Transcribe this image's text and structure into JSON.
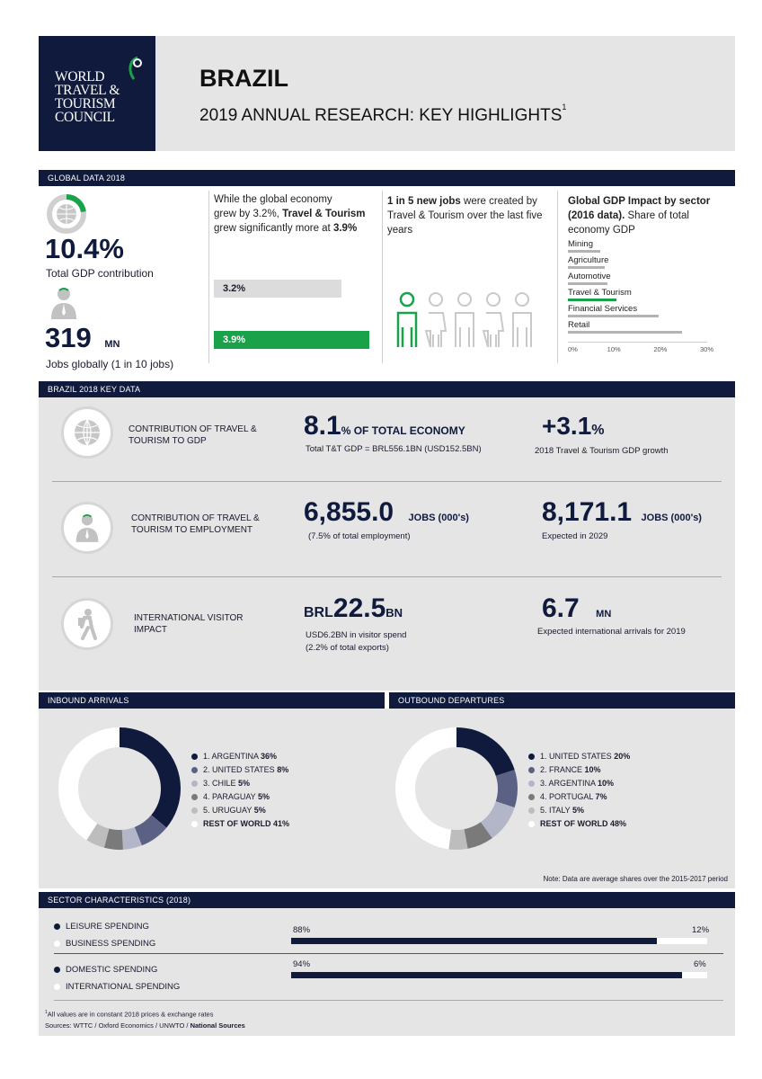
{
  "header": {
    "logo_lines": [
      "WORLD",
      "TRAVEL &",
      "TOURISM",
      "COUNCIL"
    ],
    "country": "BRAZIL",
    "subtitle": "2019 ANNUAL RESEARCH: KEY HIGHLIGHTS",
    "footnote_mark": "1"
  },
  "global": {
    "section_title": "GLOBAL DATA 2018",
    "gdp_value": "10.4%",
    "gdp_label": "Total GDP contribution",
    "gdp_share": 0.104,
    "jobs_value": "319",
    "jobs_unit": "MN",
    "jobs_label": "Jobs globally (1 in 10 jobs)",
    "growth_text_1": "While the global economy",
    "growth_text_2": "grew by 3.2%,",
    "growth_text_2b": "Travel & Tourism",
    "growth_text_3": "grew significantly more at",
    "growth_text_3b": "3.9%",
    "bar_economy": "3.2%",
    "bar_tourism": "3.9%",
    "jobs_text_bold": "1 in 5 new jobs",
    "jobs_text_1": "were created by",
    "jobs_text_2": "Travel & Tourism over the last five",
    "jobs_text_3": "years",
    "sector_title_1": "Global GDP Impact by sector",
    "sector_title_2": "(2016 data).",
    "sector_title_2b": "Share of total",
    "sector_title_3": "economy GDP",
    "sectors": [
      {
        "name": "Mining",
        "value": 7
      },
      {
        "name": "Agriculture",
        "value": 8
      },
      {
        "name": "Automotive",
        "value": 8.5
      },
      {
        "name": "Travel & Tourism",
        "value": 10.4
      },
      {
        "name": "Financial Services",
        "value": 19.5
      },
      {
        "name": "Retail",
        "value": 24.5
      }
    ],
    "sector_ticks": [
      "0%",
      "10%",
      "20%",
      "30%"
    ]
  },
  "brazil": {
    "section_title": "BRAZIL 2018 KEY DATA",
    "gdp_label_1": "CONTRIBUTION OF TRAVEL &",
    "gdp_label_2": "TOURISM TO GDP",
    "gdp_value": "8.1",
    "gdp_unit": "% OF TOTAL ECONOMY",
    "gdp_sub": "Total T&T GDP = BRL556.1BN (USD152.5BN)",
    "growth_value": "+3.1",
    "growth_unit": "%",
    "growth_sub": "2018 Travel & Tourism GDP growth",
    "emp_label_1": "CONTRIBUTION OF TRAVEL &",
    "emp_label_2": "TOURISM TO EMPLOYMENT",
    "emp_value": "6,855.0",
    "emp_unit": "JOBS (000's)",
    "emp_sub": "(7.5% of total employment)",
    "emp_2029_value": "8,171.1",
    "emp_2029_unit": "JOBS (000's)",
    "emp_2029_sub": "Expected in 2029",
    "visitor_label_1": "INTERNATIONAL VISITOR",
    "visitor_label_2": "IMPACT",
    "visitor_prefix": "BRL",
    "visitor_value": "22.5",
    "visitor_unit": "BN",
    "visitor_sub_1": "USD6.2BN in visitor spend",
    "visitor_sub_2": "(2.2% of total exports)",
    "arrivals_value": "6.7",
    "arrivals_unit": "MN",
    "arrivals_sub": "Expected international arrivals for 2019"
  },
  "inbound": {
    "section_title": "INBOUND ARRIVALS",
    "items": [
      {
        "rank": "1. ARGENTINA",
        "value": "36%",
        "share": 36,
        "color": "#0f1a3c"
      },
      {
        "rank": "2. UNITED STATES",
        "value": "8%",
        "share": 8,
        "color": "#5b6184"
      },
      {
        "rank": "3. CHILE",
        "value": "5%",
        "share": 5,
        "color": "#b3b6c8"
      },
      {
        "rank": "4. PARAGUAY",
        "value": "5%",
        "share": 5,
        "color": "#7a7a7a"
      },
      {
        "rank": "5. URUGUAY",
        "value": "5%",
        "share": 5,
        "color": "#bdbdbd"
      },
      {
        "rank": "REST OF WORLD",
        "value": "41%",
        "share": 41,
        "color": "#ffffff"
      }
    ]
  },
  "outbound": {
    "section_title": "OUTBOUND DEPARTURES",
    "items": [
      {
        "rank": "1. UNITED STATES",
        "value": "20%",
        "share": 20,
        "color": "#0f1a3c"
      },
      {
        "rank": "2. FRANCE",
        "value": "10%",
        "share": 10,
        "color": "#5b6184"
      },
      {
        "rank": "3. ARGENTINA",
        "value": "10%",
        "share": 10,
        "color": "#b3b6c8"
      },
      {
        "rank": "4. PORTUGAL",
        "value": "7%",
        "share": 7,
        "color": "#7a7a7a"
      },
      {
        "rank": "5. ITALY",
        "value": "5%",
        "share": 5,
        "color": "#bdbdbd"
      },
      {
        "rank": "REST OF WORLD",
        "value": "48%",
        "share": 48,
        "color": "#ffffff"
      }
    ],
    "note": "Note: Data are average shares over the 2015-2017 period"
  },
  "sector": {
    "section_title": "SECTOR CHARACTERISTICS (2018)",
    "leisure_label": "LEISURE SPENDING",
    "business_label": "BUSINESS SPENDING",
    "leisure_value": "88%",
    "business_value": "12%",
    "leisure_share": 0.88,
    "domestic_label": "DOMESTIC SPENDING",
    "international_label": "INTERNATIONAL SPENDING",
    "domestic_value": "94%",
    "international_value": "6%",
    "domestic_share": 0.94
  },
  "footer": {
    "footnote": "All values are in constant 2018 prices & exchange rates",
    "sources": "Sources: WTTC / Oxford Economics / UNWTO /",
    "sources_bold": "National Sources"
  }
}
